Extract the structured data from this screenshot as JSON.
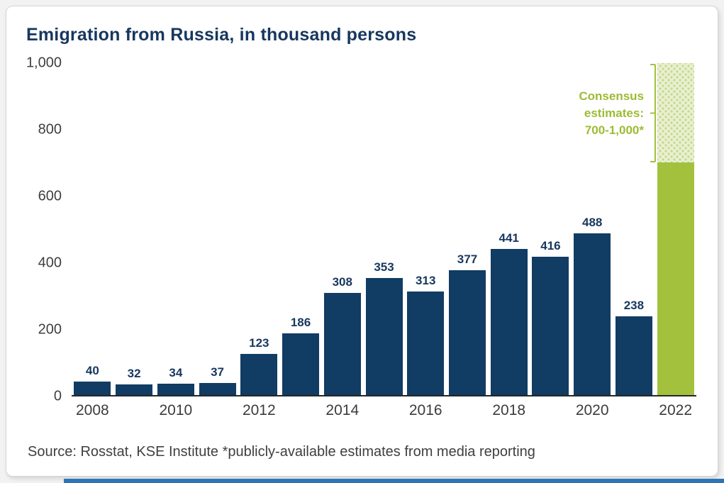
{
  "page": {
    "title": "Emigration from Russia, in thousand persons",
    "source": "Source: Rosstat, KSE Institute *publicly-available estimates from media reporting"
  },
  "annotation": {
    "line1": "Consensus",
    "line2": "estimates:",
    "line3": "700-1,000*"
  },
  "colors": {
    "bar_navy": "#113c63",
    "title_navy": "#17375e",
    "estimate_green": "#a3c13d",
    "estimate_light_green": "#e9f0d2",
    "axis_text": "#3f3f3f",
    "bottom_strip_blue": "#2e75b6"
  },
  "chart_data": {
    "type": "bar",
    "title": "Emigration from Russia, in thousand persons",
    "categories": [
      2008,
      2009,
      2010,
      2011,
      2012,
      2013,
      2014,
      2015,
      2016,
      2017,
      2018,
      2019,
      2020,
      2021,
      2022
    ],
    "values": [
      40,
      32,
      34,
      37,
      123,
      186,
      308,
      353,
      313,
      377,
      441,
      416,
      488,
      238,
      null
    ],
    "estimate": {
      "year": 2022,
      "low": 700,
      "high": 1000,
      "label": "Consensus estimates: 700-1,000*"
    },
    "ylim": [
      0,
      1000
    ],
    "yticks": [
      0,
      200,
      400,
      600,
      800,
      1000
    ],
    "ytick_labels": [
      "0",
      "200",
      "400",
      "600",
      "800",
      "1,000"
    ],
    "xtick_years_labeled": [
      2008,
      2010,
      2012,
      2014,
      2016,
      2018,
      2020,
      2022
    ],
    "grid": false,
    "legend": false,
    "ylabel": "",
    "xlabel": "",
    "source": "Source: Rosstat, KSE Institute *publicly-available estimates from media reporting"
  }
}
